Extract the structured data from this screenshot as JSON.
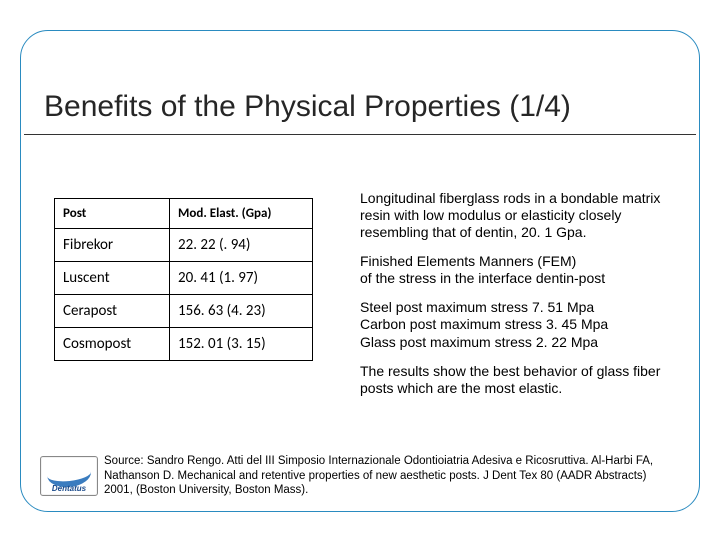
{
  "title": "Benefits of the Physical Properties (1/4)",
  "table": {
    "columns": [
      "Post",
      "Mod. Elast. (Gpa)"
    ],
    "rows": [
      {
        "post": "Fibrekor",
        "value": "22. 22 (. 94)"
      },
      {
        "post": "Luscent",
        "value": "20. 41 (1. 97)"
      },
      {
        "post": "Cerapost",
        "value": "156. 63 (4. 23)"
      },
      {
        "post": "Cosmopost",
        "value": "152. 01 (3. 15)"
      }
    ]
  },
  "paragraphs": {
    "p1": "Longitudinal fiberglass rods in a bondable matrix resin with low modulus or elasticity closely resembling that of dentin, 20. 1 Gpa.",
    "p2a": "Finished Elements Manners (FEM)",
    "p2b": "of the stress in the interface dentin-post",
    "p3a": "Steel post maximum stress 7. 51 Mpa",
    "p3b": "Carbon post maximum stress 3. 45 Mpa",
    "p3c": "Glass post maximum stress 2. 22 Mpa",
    "p4": "The results show the best behavior of glass fiber posts which are the most elastic."
  },
  "source": "Source: Sandro Rengo. Atti del III Simposio Internazionale Odontioiatria Adesiva e Ricosruttiva. Al-Harbi FA, Nathanson D. Mechanical and retentive properties of new aesthetic posts. J Dent Tex 80 (AADR Abstracts) 2001, (Boston University, Boston Mass).",
  "logo_text": "Dentatus",
  "colors": {
    "frame_border": "#2a8bc0",
    "logo_blue": "#1a4a8a"
  }
}
